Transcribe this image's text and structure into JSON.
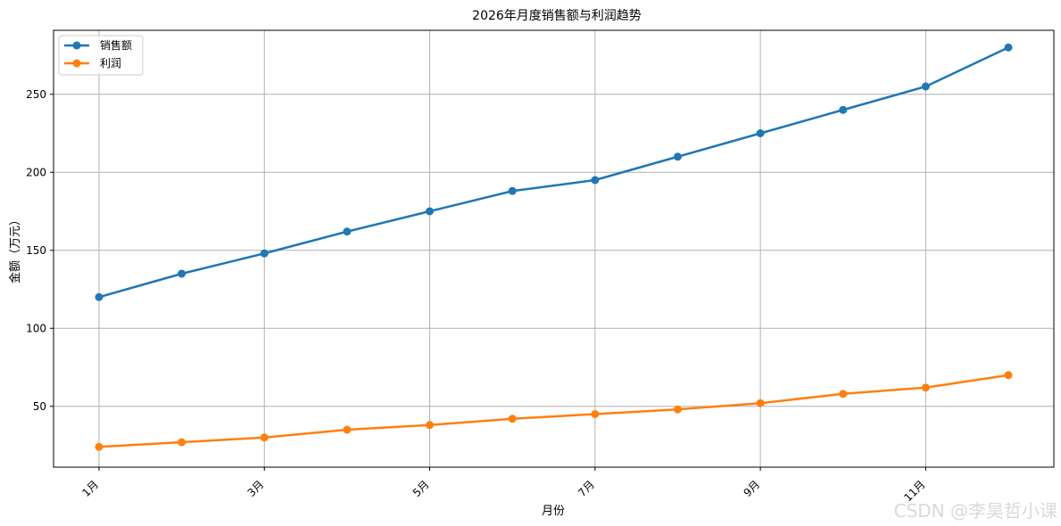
{
  "chart_data": {
    "type": "line",
    "title": "2026年月度销售额与利润趋势",
    "xlabel": "月份",
    "ylabel": "金额（万元）",
    "x": [
      1,
      2,
      3,
      4,
      5,
      6,
      7,
      8,
      9,
      10,
      11,
      12
    ],
    "xticks": [
      1,
      3,
      5,
      7,
      9,
      11
    ],
    "xtick_labels": [
      "1月",
      "3月",
      "5月",
      "7月",
      "9月",
      "11月"
    ],
    "xlim": [
      0.45,
      12.55
    ],
    "yticks": [
      50,
      100,
      150,
      200,
      250
    ],
    "ylim": [
      11,
      291
    ],
    "grid": true,
    "legend_position": "top-left",
    "series": [
      {
        "name": "销售额",
        "color": "#1f77b4",
        "values": [
          120,
          135,
          148,
          162,
          175,
          188,
          195,
          210,
          225,
          240,
          255,
          280
        ]
      },
      {
        "name": "利润",
        "color": "#ff7f0e",
        "values": [
          24,
          27,
          30,
          35,
          38,
          42,
          45,
          48,
          52,
          58,
          62,
          70
        ]
      }
    ]
  },
  "watermark": "CSDN @李昊哲小课"
}
